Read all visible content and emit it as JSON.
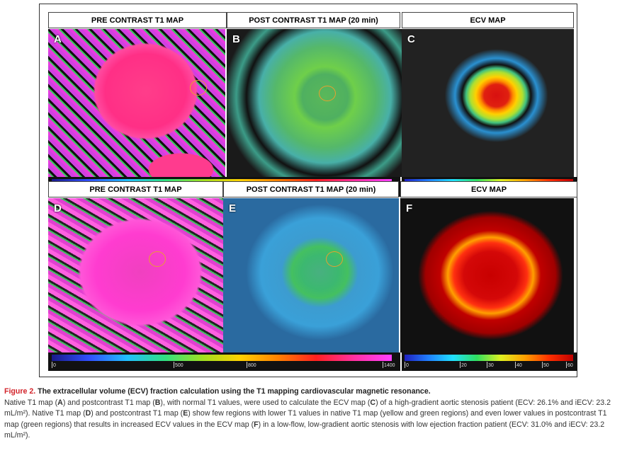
{
  "figure": {
    "rows": [
      {
        "headers": [
          "PRE CONTRAST T1 MAP",
          "POST CONTRAST T1 MAP (20 min)",
          "ECV MAP"
        ],
        "panels": [
          "A",
          "B",
          "C"
        ]
      },
      {
        "headers": [
          "PRE CONTRAST T1 MAP",
          "POST CONTRAST T1 MAP (20 min)",
          "ECV MAP"
        ],
        "panels": [
          "D",
          "E",
          "F"
        ]
      }
    ],
    "t1_scale": [
      "0",
      "500",
      "800",
      "1400"
    ],
    "ecv_scale": [
      "0",
      "20",
      "30",
      "40",
      "50",
      "60"
    ]
  },
  "caption": {
    "label": "Figure 2.",
    "title": " The extracellular volume (ECV) fraction calculation using the T1 mapping cardiovascular magnetic resonance.",
    "body": [
      "Native T1 map (",
      "A",
      ") and postcontrast T1 map (",
      "B",
      "), with normal T1 values, were used to calculate the ECV map (",
      "C",
      ") of a high-gradient aortic stenosis patient (ECV: 26.1% and iECV: 23.2 mL/m²). Native T1 map (",
      "D",
      ") and postcontrast T1 map (",
      "E",
      ") show few regions with lower T1 values in native T1 map (yellow and green regions) and even lower values in postcontrast T1 map (green regions) that results in increased ECV values in the ECV map (",
      "F",
      ") in a low-flow, low-gradient aortic stenosis with low ejection fraction patient (ECV: 31.0% and iECV: 23.2 mL/m²)."
    ]
  }
}
